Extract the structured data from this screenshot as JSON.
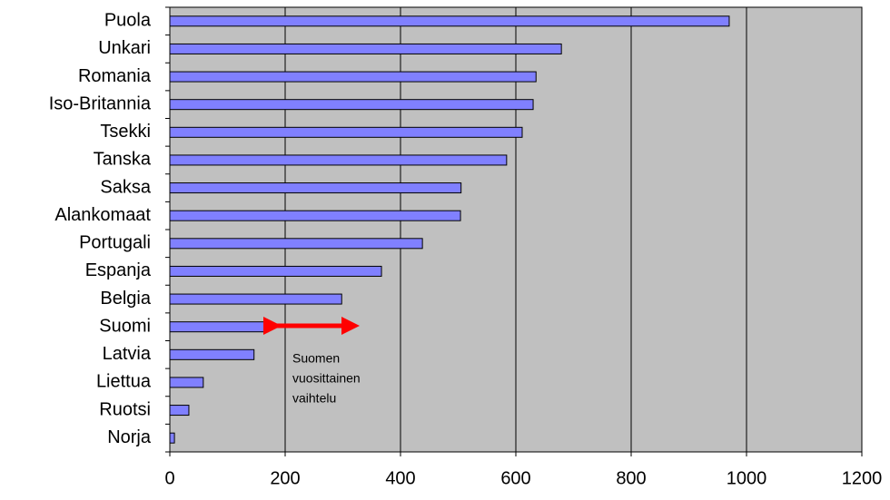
{
  "chart_data": {
    "type": "bar",
    "orientation": "horizontal",
    "categories": [
      "Puola",
      "Unkari",
      "Romania",
      "Iso-Britannia",
      "Tsekki",
      "Tanska",
      "Saksa",
      "Alankomaat",
      "Portugali",
      "Espanja",
      "Belgia",
      "Suomi",
      "Latvia",
      "Liettua",
      "Ruotsi",
      "Norja"
    ],
    "values": [
      970,
      679,
      635,
      630,
      611,
      584,
      505,
      504,
      438,
      367,
      298,
      170,
      146,
      58,
      33,
      8
    ],
    "color": "#8080ff",
    "xlim": [
      0,
      1200
    ],
    "xticks": [
      0,
      200,
      400,
      600,
      800,
      1000,
      1200
    ],
    "grid": true,
    "annotation": [
      "Suomen",
      "vuosittainen",
      "vaihtelu"
    ]
  }
}
